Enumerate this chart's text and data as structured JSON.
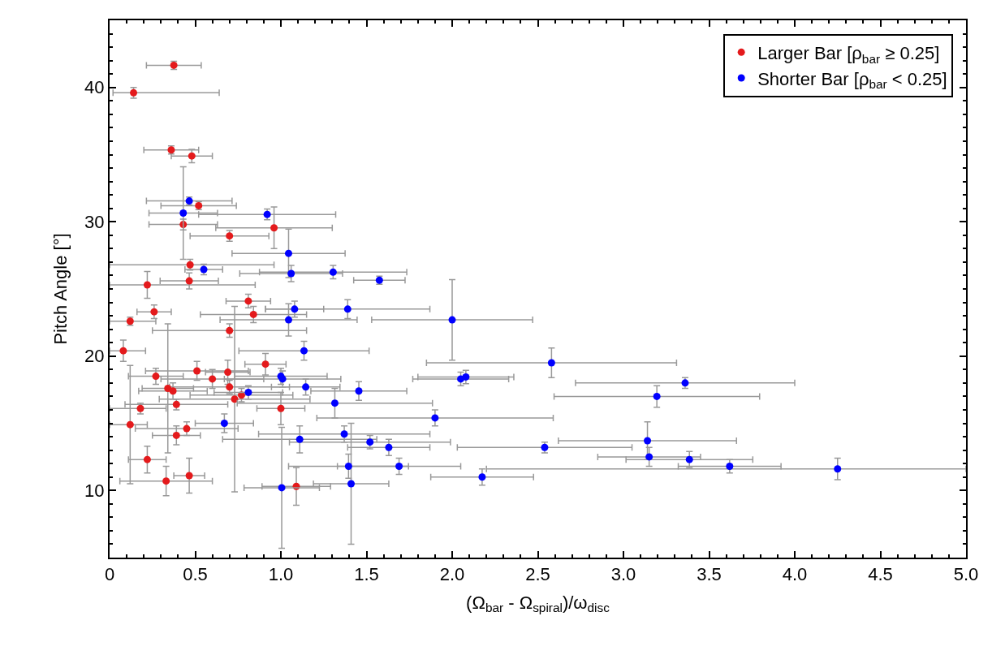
{
  "chart_data": {
    "type": "scatter",
    "xlabel": "(Ω$_{bar}$ - Ω$_{spiral}$)/ω$_{disc}$",
    "ylabel": "Pitch Angle [°]",
    "xlim": [
      0,
      5
    ],
    "ylim": [
      5,
      45
    ],
    "xticks": [
      0,
      0.5,
      {
        "value": 1,
        "label": "1.0"
      },
      1.5,
      {
        "value": 2,
        "label": "2.0"
      },
      2.5,
      {
        "value": 3,
        "label": "3.0"
      },
      3.5,
      {
        "value": 4,
        "label": "4.0"
      },
      4.5,
      {
        "value": 5,
        "label": "5.0"
      }
    ],
    "yticks": [
      10,
      20,
      30,
      40
    ],
    "legend": "top right",
    "marker": "circle",
    "series": [
      {
        "name": "Larger Bar [ρ$_{bar}$ ≥ 0.25]",
        "color": "#e41a1c",
        "x": [
          0.375,
          0.14,
          0.36,
          0.48,
          0.52,
          0.43,
          0.96,
          0.7,
          0.47,
          0.22,
          0.465,
          0.81,
          0.26,
          0.84,
          0.12,
          0.7,
          0.08,
          0.91,
          0.51,
          0.69,
          0.27,
          0.6,
          0.7,
          0.34,
          0.37,
          0.77,
          0.73,
          0.39,
          0.18,
          1.0,
          0.12,
          0.45,
          0.39,
          0.22,
          0.33,
          0.465,
          1.09
        ],
        "values": [
          41.65,
          39.6,
          35.35,
          34.9,
          31.2,
          29.8,
          29.55,
          28.95,
          26.8,
          25.3,
          25.6,
          24.1,
          23.3,
          23.1,
          22.6,
          21.9,
          20.4,
          19.4,
          18.9,
          18.8,
          18.5,
          18.3,
          17.7,
          17.6,
          17.4,
          17.1,
          16.8,
          16.4,
          16.1,
          16.1,
          14.9,
          14.6,
          14.1,
          12.3,
          10.7,
          11.1,
          10.3
        ],
        "errors": [
          0.3,
          0.4,
          0.3,
          0.5,
          0.3,
          0.4,
          1.55,
          0.4,
          0.4,
          1.0,
          0.6,
          0.5,
          0.5,
          0.6,
          0.3,
          0.5,
          0.8,
          0.8,
          0.7,
          0.9,
          0.6,
          0.7,
          0.5,
          4.8,
          0.6,
          0.5,
          6.9,
          0.4,
          0.4,
          1.2,
          4.4,
          0.5,
          0.7,
          1.0,
          1.1,
          1.3,
          1.4
        ],
        "xerrors": [
          0.16,
          [
            0.02,
            0.64
          ],
          0.16,
          0.12,
          0.22,
          0.2,
          0.34,
          0.23,
          [
            0,
            0.96
          ],
          [
            0,
            0.85
          ],
          0.17,
          0.13,
          0.1,
          0.31,
          [
            0,
            0.27
          ],
          0.45,
          [
            0,
            0.21
          ],
          0.12,
          0.3,
          0.13,
          0.16,
          0.3,
          0.35,
          0.15,
          0.2,
          0.3,
          0.44,
          0.3,
          [
            0,
            0.33
          ],
          0.14,
          [
            0,
            0.22
          ],
          0.3,
          0.14,
          0.11,
          0.27,
          0.09,
          0.2
        ]
      },
      {
        "name": "Shorter Bar [ρ$_{bar}$ < 0.25]",
        "color": "#0000ff",
        "x": [
          0.43,
          0.465,
          0.92,
          1.045,
          0.55,
          1.06,
          1.305,
          1.575,
          1.08,
          1.39,
          1.045,
          2.0,
          1.135,
          2.58,
          2.05,
          2.08,
          3.36,
          3.195,
          1.0,
          1.01,
          0.81,
          1.145,
          1.455,
          1.315,
          1.9,
          0.67,
          1.37,
          1.11,
          1.52,
          1.63,
          2.54,
          3.14,
          3.15,
          3.385,
          3.62,
          4.25,
          1.69,
          1.395,
          1.41,
          1.005,
          2.175
        ],
        "values": [
          30.65,
          31.55,
          30.55,
          27.65,
          26.45,
          26.15,
          26.25,
          25.65,
          23.5,
          23.5,
          22.7,
          22.7,
          20.4,
          19.5,
          18.3,
          18.45,
          18.0,
          17.0,
          18.5,
          18.3,
          17.3,
          17.7,
          17.4,
          16.5,
          15.4,
          15.0,
          14.2,
          13.8,
          13.6,
          13.2,
          13.2,
          13.7,
          12.5,
          12.3,
          11.8,
          11.6,
          11.8,
          11.8,
          10.5,
          10.2,
          11.0
        ],
        "errors": [
          3.45,
          0.3,
          0.4,
          1.8,
          0.4,
          0.6,
          0.5,
          0.3,
          0.6,
          0.7,
          1.2,
          3.0,
          0.7,
          1.1,
          0.5,
          0.5,
          0.4,
          0.8,
          0.6,
          0.6,
          0.5,
          0.6,
          0.7,
          1.1,
          0.6,
          0.7,
          0.6,
          1.0,
          0.5,
          0.6,
          0.4,
          1.4,
          0.7,
          0.6,
          0.5,
          0.8,
          0.6,
          0.9,
          4.5,
          4.5,
          0.6
        ],
        "xerrors": [
          0.2,
          0.25,
          0.4,
          0.33,
          0.11,
          0.3,
          0.43,
          0.15,
          0.17,
          0.48,
          0.4,
          0.47,
          0.38,
          0.73,
          0.28,
          0.28,
          0.64,
          0.6,
          0.27,
          0.34,
          0.2,
          0.2,
          0.28,
          0.57,
          0.69,
          0.17,
          0.5,
          0.45,
          0.47,
          0.24,
          0.51,
          0.52,
          0.3,
          0.37,
          0.3,
          [
            2.2,
            5
          ],
          0.36,
          0.35,
          0.22,
          0.22,
          0.3
        ]
      }
    ]
  }
}
